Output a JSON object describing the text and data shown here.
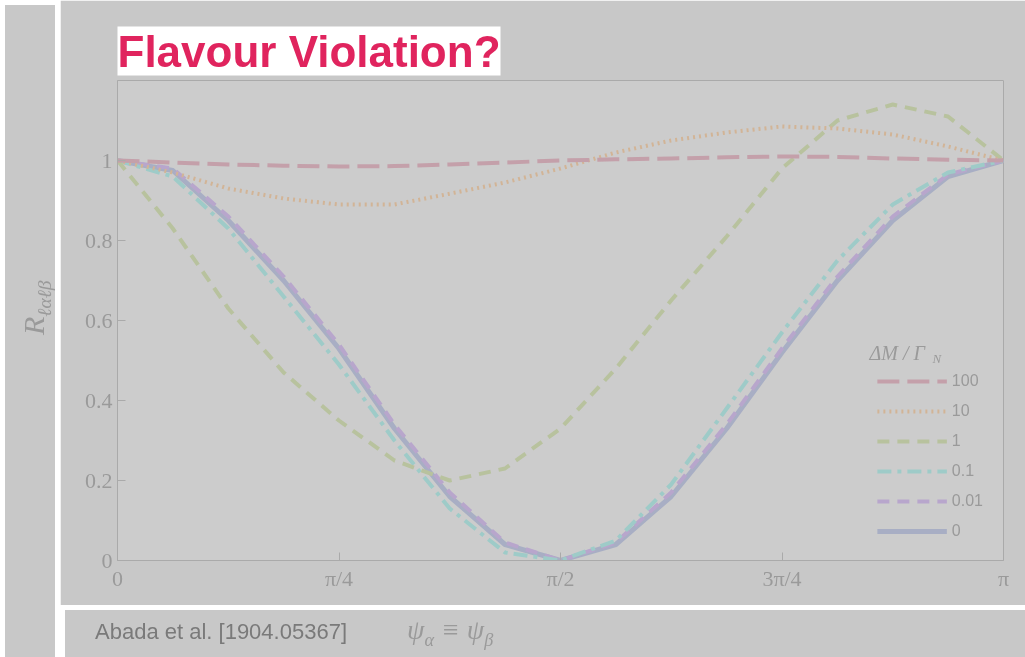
{
  "chart_data": {
    "type": "line",
    "title": "Flavour Violation?",
    "xlabel": "ψ$_{α}$ ≡ ψ$_{β}$",
    "ylabel": "R$_{ℓαℓβ}$",
    "legend_title": "ΔM / Γ$_{N}$",
    "annotations": [
      "Abada et al. [1904.05367]"
    ],
    "x": [
      0,
      0.196,
      0.393,
      0.589,
      0.785,
      0.982,
      1.178,
      1.374,
      1.571,
      1.767,
      1.963,
      2.16,
      2.356,
      2.553,
      2.749,
      2.945,
      3.1416
    ],
    "series": [
      {
        "name": "100",
        "color": "#c4a0aa",
        "line_style": "longdash",
        "values": [
          1,
          0.995,
          0.99,
          0.987,
          0.985,
          0.986,
          0.99,
          0.995,
          1.0,
          1.003,
          1.005,
          1.008,
          1.01,
          1.009,
          1.005,
          1.002,
          1
        ]
      },
      {
        "name": "10",
        "color": "#d2b496",
        "line_style": "dotted",
        "values": [
          1,
          0.97,
          0.93,
          0.905,
          0.89,
          0.89,
          0.917,
          0.945,
          0.98,
          1.02,
          1.05,
          1.07,
          1.085,
          1.08,
          1.065,
          1.035,
          1
        ]
      },
      {
        "name": "1",
        "color": "#b8c29e",
        "line_style": "dashed",
        "values": [
          1,
          0.83,
          0.63,
          0.47,
          0.35,
          0.25,
          0.2,
          0.23,
          0.33,
          0.48,
          0.65,
          0.81,
          0.98,
          1.1,
          1.14,
          1.11,
          1
        ]
      },
      {
        "name": "0.1",
        "color": "#9ecbc8",
        "line_style": "dashdot",
        "values": [
          1,
          0.96,
          0.83,
          0.66,
          0.49,
          0.3,
          0.13,
          0.02,
          0,
          0.05,
          0.19,
          0.38,
          0.57,
          0.75,
          0.89,
          0.97,
          1
        ]
      },
      {
        "name": "0.01",
        "color": "#b8a6cc",
        "line_style": "dashed",
        "values": [
          1,
          0.98,
          0.86,
          0.71,
          0.54,
          0.34,
          0.17,
          0.045,
          0,
          0.045,
          0.17,
          0.34,
          0.53,
          0.71,
          0.86,
          0.965,
          1
        ]
      },
      {
        "name": "0",
        "color": "#a8aec4",
        "line_style": "solid",
        "values": [
          1,
          0.975,
          0.85,
          0.7,
          0.53,
          0.33,
          0.16,
          0.04,
          0,
          0.04,
          0.16,
          0.33,
          0.52,
          0.7,
          0.85,
          0.96,
          1
        ]
      }
    ],
    "xlim": [
      0,
      3.1416
    ],
    "ylim": [
      0,
      1.2
    ],
    "xticks": [
      0,
      {
        "value": 0.7854,
        "label": "π/4"
      },
      {
        "value": 1.5708,
        "label": "π/2"
      },
      {
        "value": 2.3562,
        "label": "3π/4"
      },
      {
        "value": 3.1416,
        "label": "π"
      }
    ],
    "yticks": [
      0,
      0.2,
      0.4,
      0.6,
      0.8,
      1
    ],
    "legend": "bottom right",
    "grid": false
  }
}
